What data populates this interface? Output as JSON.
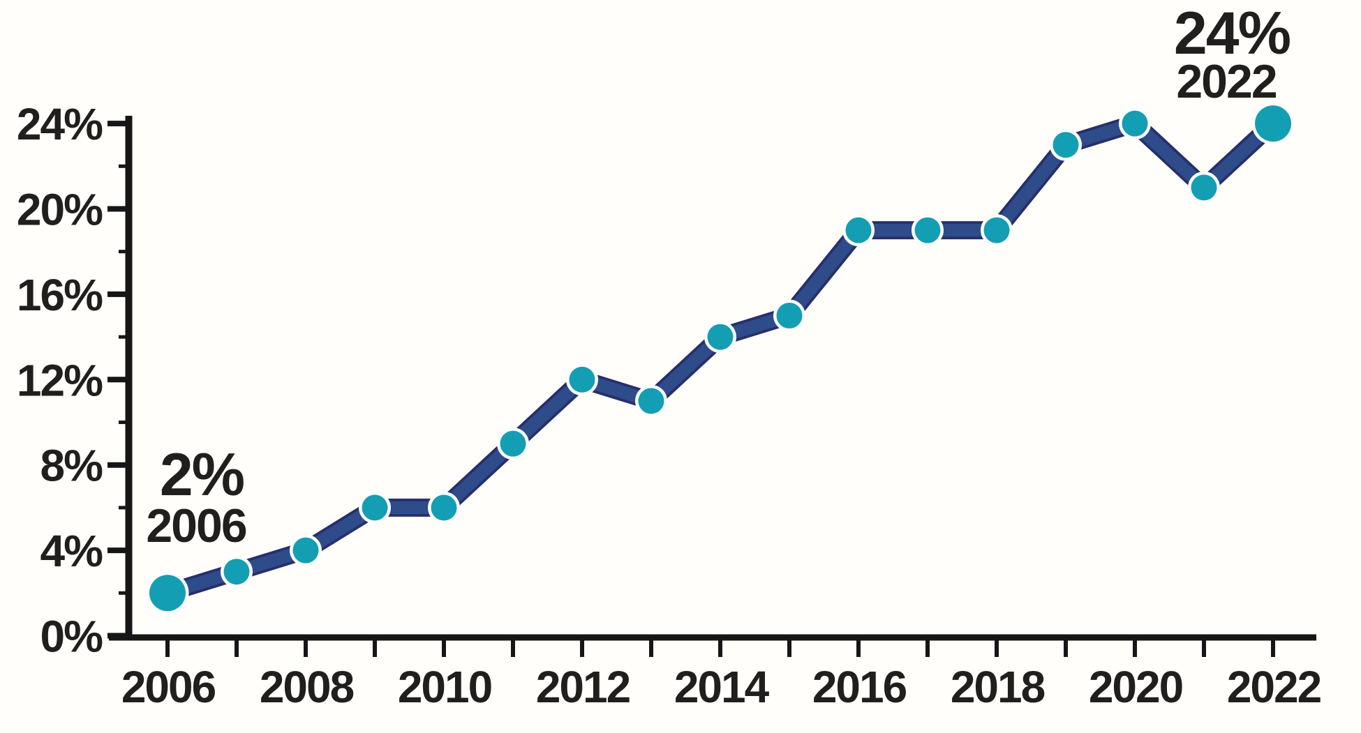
{
  "chart_data": {
    "type": "line",
    "title": "",
    "xlabel": "",
    "ylabel": "",
    "x": [
      2006,
      2007,
      2008,
      2009,
      2010,
      2011,
      2012,
      2013,
      2014,
      2015,
      2016,
      2017,
      2018,
      2019,
      2020,
      2021,
      2022
    ],
    "values": [
      2,
      3,
      4,
      6,
      6,
      9,
      12,
      11,
      14,
      15,
      19,
      19,
      19,
      23,
      24,
      21,
      24
    ],
    "ylim": [
      0,
      24
    ],
    "xlim": [
      2006,
      2022
    ],
    "grid": false,
    "legend": null,
    "yticks_major": {
      "values": [
        0,
        4,
        8,
        12,
        16,
        20,
        24
      ],
      "labels": [
        "0%",
        "4%",
        "8%",
        "12%",
        "16%",
        "20%",
        "24%"
      ]
    },
    "yticks_minor": [
      2,
      6,
      10,
      14,
      18,
      22
    ],
    "xticks_all_years": [
      2006,
      2007,
      2008,
      2009,
      2010,
      2011,
      2012,
      2013,
      2014,
      2015,
      2016,
      2017,
      2018,
      2019,
      2020,
      2021,
      2022
    ],
    "xticks_labeled": {
      "values": [
        2006,
        2008,
        2010,
        2012,
        2014,
        2016,
        2018,
        2020,
        2022
      ],
      "labels": [
        "2006",
        "2008",
        "2010",
        "2012",
        "2014",
        "2016",
        "2018",
        "2020",
        "2022"
      ]
    },
    "emphasized_years": [
      2006,
      2022
    ],
    "annotations": [
      {
        "value_label": "2%",
        "year_label": "2006",
        "year": 2006,
        "value": 2
      },
      {
        "value_label": "24%",
        "year_label": "2022",
        "year": 2022,
        "value": 24
      }
    ],
    "colors": {
      "line": "#2e4b8a",
      "line_edge": "#272f6a",
      "marker": "#149eb3",
      "marker_halo": "#ffffff",
      "axis": "#161616",
      "label": "#211e1e",
      "background": "#fffefa"
    }
  }
}
